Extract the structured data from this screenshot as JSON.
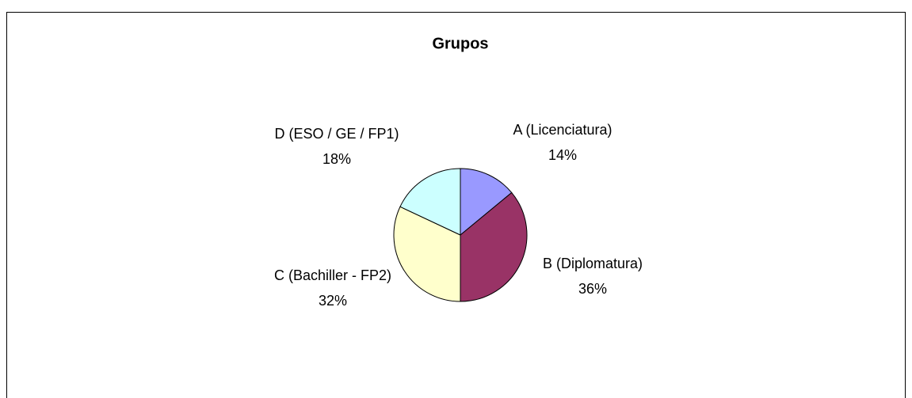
{
  "chart_data": {
    "type": "pie",
    "title": "Grupos",
    "categories": [
      "A (Licenciatura)",
      "B (Diplomatura)",
      "C (Bachiller - FP2)",
      "D (ESO / GE / FP1)"
    ],
    "values": [
      14,
      36,
      32,
      18
    ],
    "value_labels": [
      "14%",
      "36%",
      "32%",
      "18%"
    ],
    "colors": [
      "#9999ff",
      "#993366",
      "#ffffcc",
      "#ccffff"
    ]
  }
}
